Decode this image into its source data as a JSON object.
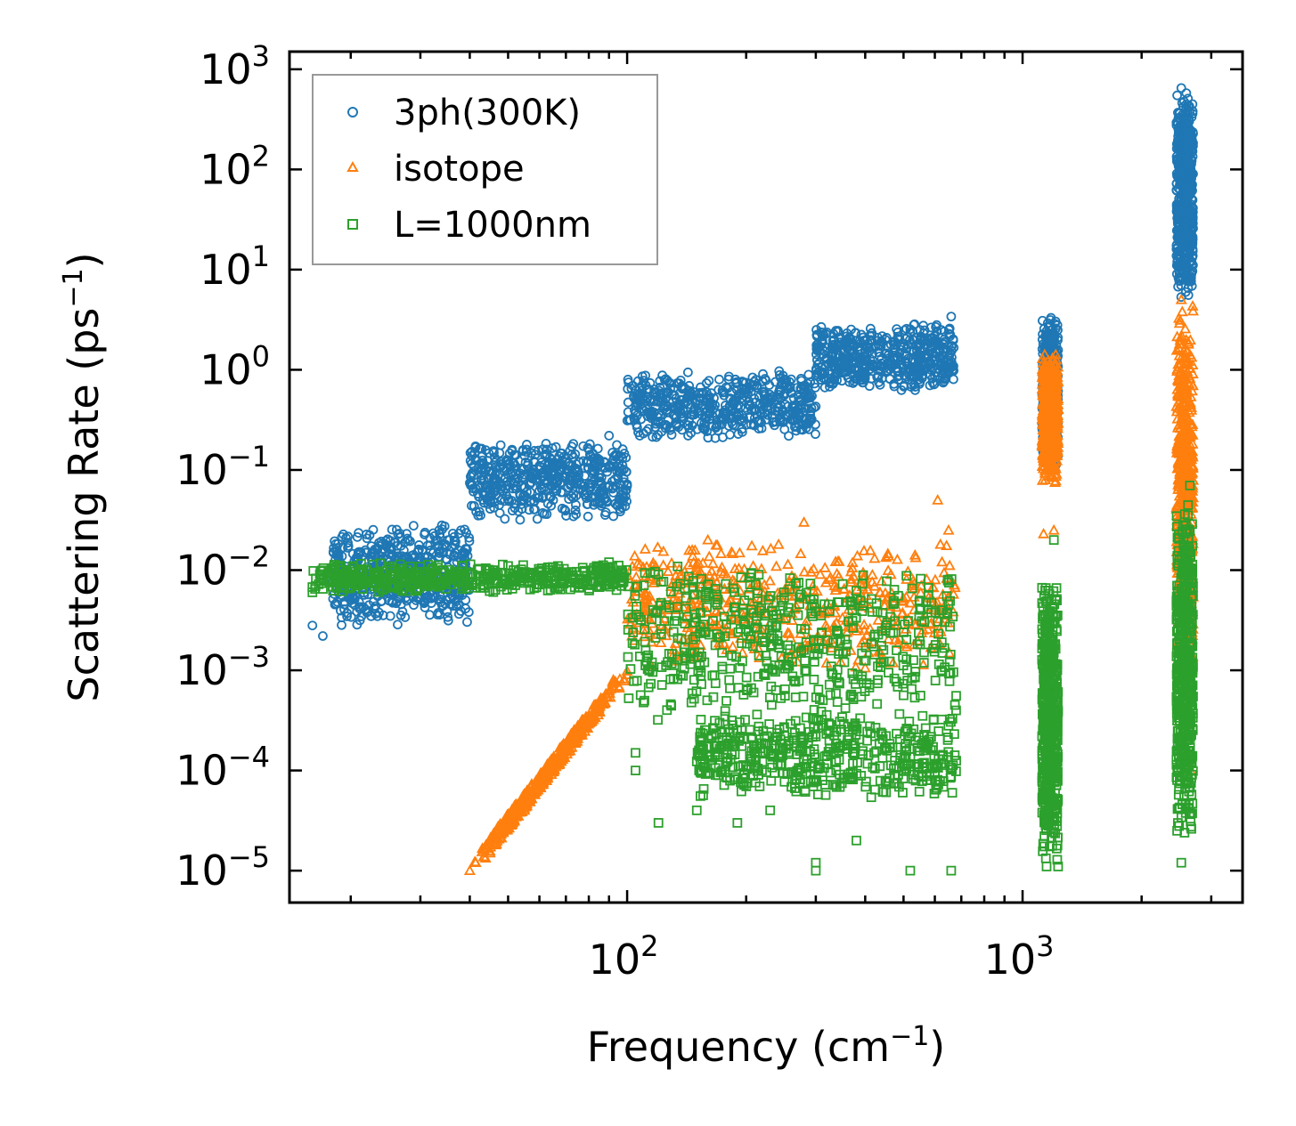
{
  "chart_data": {
    "type": "scatter",
    "xscale": "log",
    "yscale": "log",
    "xlim": [
      14,
      3600
    ],
    "ylim": [
      4.8e-06,
      1500
    ],
    "xlabel": "Frequency (cm",
    "xlabel_sup": "−1",
    "xlabel_end": ")",
    "ylabel": "Scattering Rate (ps",
    "ylabel_sup": "−1",
    "ylabel_end": ")",
    "x_ticks": [
      {
        "value": 100,
        "base": "10",
        "exp": "2"
      },
      {
        "value": 1000,
        "base": "10",
        "exp": "3"
      }
    ],
    "y_ticks": [
      {
        "value": 1000,
        "base": "10",
        "exp": "3"
      },
      {
        "value": 100,
        "base": "10",
        "exp": "2"
      },
      {
        "value": 10,
        "base": "10",
        "exp": "1"
      },
      {
        "value": 1,
        "base": "10",
        "exp": "0"
      },
      {
        "value": 0.1,
        "base": "10",
        "exp": "−1"
      },
      {
        "value": 0.01,
        "base": "10",
        "exp": "−2"
      },
      {
        "value": 0.001,
        "base": "10",
        "exp": "−3"
      },
      {
        "value": 0.0001,
        "base": "10",
        "exp": "−4"
      },
      {
        "value": 1e-05,
        "base": "10",
        "exp": "−5"
      }
    ],
    "legend_position": "top-left",
    "series": [
      {
        "name": "3ph(300K)",
        "marker": "circle",
        "color": "#1f77b4",
        "bands": [
          {
            "x": [
              18,
              40
            ],
            "y": [
              0.0028,
              0.03
            ]
          },
          {
            "x": [
              40,
              100
            ],
            "y": [
              0.03,
              0.2
            ]
          },
          {
            "x": [
              100,
              300
            ],
            "y": [
              0.2,
              1.0
            ]
          },
          {
            "x": [
              300,
              670
            ],
            "y": [
              0.6,
              3.0
            ]
          },
          {
            "x": [
              1120,
              1230
            ],
            "y": [
              0.1,
              3.5
            ]
          },
          {
            "x": [
              2450,
              2700
            ],
            "y": [
              5,
              650
            ]
          }
        ],
        "points": [
          [
            16,
            0.0028
          ],
          [
            17,
            0.0022
          ],
          [
            19,
            0.009
          ],
          [
            20,
            0.005
          ],
          [
            21,
            0.0048
          ],
          [
            22,
            0.007
          ],
          [
            24,
            0.008
          ],
          [
            25,
            0.0075
          ],
          [
            27,
            0.008
          ],
          [
            28,
            0.013
          ],
          [
            30,
            0.0065
          ],
          [
            32,
            0.012
          ],
          [
            34,
            0.028
          ],
          [
            36,
            0.017
          ],
          [
            38,
            0.025
          ],
          [
            42,
            0.035
          ],
          [
            45,
            0.05
          ],
          [
            50,
            0.07
          ],
          [
            55,
            0.09
          ],
          [
            60,
            0.11
          ],
          [
            65,
            0.05
          ],
          [
            70,
            0.12
          ],
          [
            80,
            0.16
          ],
          [
            90,
            0.22
          ],
          [
            120,
            0.3
          ],
          [
            160,
            0.5
          ],
          [
            200,
            0.6
          ],
          [
            250,
            0.7
          ],
          [
            350,
            1.2
          ],
          [
            450,
            2.0
          ],
          [
            550,
            2.5
          ],
          [
            660,
            3.4
          ],
          [
            1180,
            3.3
          ],
          [
            1150,
            0.25
          ],
          [
            2520,
            650
          ],
          [
            2650,
            250
          ],
          [
            2600,
            8
          ]
        ]
      },
      {
        "name": "isotope",
        "marker": "triangle",
        "color": "#ff7f0e",
        "bands": [
          {
            "x": [
              40,
              100
            ],
            "y": [
              1e-05,
              0.001
            ]
          },
          {
            "x": [
              100,
              680
            ],
            "y": [
              0.001,
              0.02
            ]
          },
          {
            "x": [
              1120,
              1230
            ],
            "y": [
              0.07,
              1.5
            ]
          },
          {
            "x": [
              2450,
              2700
            ],
            "y": [
              0.001,
              5
            ]
          }
        ],
        "points": [
          [
            40,
            1e-05
          ],
          [
            45,
            1.5e-05
          ],
          [
            55,
            4e-05
          ],
          [
            65,
            0.0001
          ],
          [
            80,
            0.0003
          ],
          [
            100,
            0.0009
          ],
          [
            160,
            0.02
          ],
          [
            280,
            0.03
          ],
          [
            610,
            0.05
          ],
          [
            650,
            0.025
          ],
          [
            1130,
            0.023
          ],
          [
            1200,
            0.025
          ],
          [
            1230,
            0.4
          ],
          [
            1190,
            1.3
          ],
          [
            2520,
            5
          ],
          [
            2550,
            0.3
          ],
          [
            2650,
            0.001
          ],
          [
            2660,
            0.0001
          ],
          [
            2500,
            0.025
          ]
        ]
      },
      {
        "name": "L=1000nm",
        "marker": "square",
        "color": "#2ca02c",
        "bands": [
          {
            "x": [
              16,
              100
            ],
            "y": [
              0.006,
              0.012
            ]
          },
          {
            "x": [
              100,
              680
            ],
            "y": [
              0.0003,
              0.012
            ]
          },
          {
            "x": [
              150,
              680
            ],
            "y": [
              5e-05,
              0.0004
            ]
          },
          {
            "x": [
              1120,
              1230
            ],
            "y": [
              1e-05,
              0.01
            ]
          },
          {
            "x": [
              2450,
              2700
            ],
            "y": [
              2e-05,
              0.05
            ]
          }
        ],
        "points": [
          [
            16,
            0.006
          ],
          [
            17,
            0.0065
          ],
          [
            20,
            0.008
          ],
          [
            22,
            0.0075
          ],
          [
            30,
            0.008
          ],
          [
            50,
            0.011
          ],
          [
            90,
            0.012
          ],
          [
            105,
            0.00015
          ],
          [
            105,
            0.0001
          ],
          [
            120,
            3e-05
          ],
          [
            150,
            4e-05
          ],
          [
            190,
            3e-05
          ],
          [
            230,
            4e-05
          ],
          [
            300,
            1.2e-05
          ],
          [
            300,
            1e-05
          ],
          [
            380,
            2e-05
          ],
          [
            520,
            1e-05
          ],
          [
            660,
            1e-05
          ],
          [
            1150,
            1.1e-05
          ],
          [
            1230,
            1.1e-05
          ],
          [
            1200,
            0.02
          ],
          [
            2520,
            1.2e-05
          ],
          [
            2650,
            0.07
          ],
          [
            2600,
            0.0002
          ]
        ]
      }
    ]
  }
}
